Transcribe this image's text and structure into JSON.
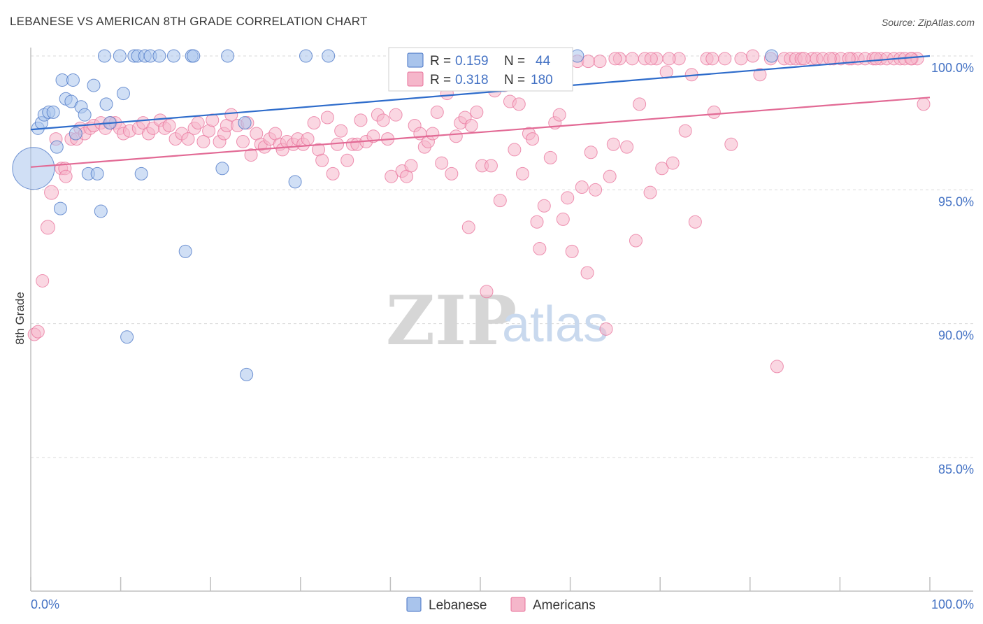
{
  "header": {
    "title": "LEBANESE VS AMERICAN 8TH GRADE CORRELATION CHART",
    "source": "Source: ZipAtlas.com"
  },
  "watermark": {
    "zip": "ZIP",
    "atlas": "atlas"
  },
  "colors": {
    "blue": "#4472c4",
    "blue_fill": "#a9c4ec",
    "blue_line": "#2e6ccb",
    "pink": "#e8709a",
    "pink_fill": "#f5b6ca",
    "pink_line": "#e26a95",
    "grid": "#d9d9d9",
    "axis": "#c0c0c0"
  },
  "legend": {
    "r_label": "R =",
    "n_label": "N =",
    "rows": [
      {
        "series": "Lebanese",
        "r": "0.159",
        "n": "44"
      },
      {
        "series": "Americans",
        "r": "0.318",
        "n": "180"
      }
    ]
  },
  "chart_data": {
    "type": "scatter",
    "title": "LEBANESE VS AMERICAN 8TH GRADE CORRELATION CHART",
    "xlabel": "",
    "ylabel": "8th Grade",
    "xlim": [
      0,
      100
    ],
    "ylim": [
      80.5,
      100.7
    ],
    "x_tick_labels": [
      "0.0%",
      "100.0%"
    ],
    "y_ticks": [
      85,
      90,
      95,
      100
    ],
    "y_tick_labels": [
      "85.0%",
      "90.0%",
      "95.0%",
      "100.0%"
    ],
    "grid": "horizontal dashed",
    "legend_placement": "top-center",
    "series": [
      {
        "name": "Lebanese",
        "color": "#4472c4",
        "trend": {
          "x0": 0,
          "y0": 97.25,
          "x1": 100,
          "y1": 100.0
        },
        "points": [
          [
            0.3,
            95.8
          ],
          [
            0.8,
            97.3
          ],
          [
            1.2,
            97.5
          ],
          [
            1.5,
            97.8
          ],
          [
            2.0,
            97.9
          ],
          [
            2.5,
            97.9
          ],
          [
            2.9,
            96.6
          ],
          [
            3.3,
            94.3
          ],
          [
            3.5,
            99.1
          ],
          [
            3.9,
            98.4
          ],
          [
            4.5,
            98.3
          ],
          [
            4.7,
            99.1
          ],
          [
            5.0,
            97.1
          ],
          [
            5.6,
            98.1
          ],
          [
            6.0,
            97.8
          ],
          [
            6.4,
            95.6
          ],
          [
            7.0,
            98.9
          ],
          [
            7.4,
            95.6
          ],
          [
            7.8,
            94.2
          ],
          [
            8.2,
            100.0
          ],
          [
            8.4,
            98.2
          ],
          [
            8.8,
            97.5
          ],
          [
            9.9,
            100.0
          ],
          [
            10.3,
            98.6
          ],
          [
            10.7,
            89.5
          ],
          [
            11.5,
            100.0
          ],
          [
            11.9,
            100.0
          ],
          [
            12.3,
            95.6
          ],
          [
            12.7,
            100.0
          ],
          [
            13.3,
            100.0
          ],
          [
            14.3,
            100.0
          ],
          [
            15.9,
            100.0
          ],
          [
            17.2,
            92.7
          ],
          [
            17.9,
            100.0
          ],
          [
            18.1,
            100.0
          ],
          [
            21.3,
            95.8
          ],
          [
            21.9,
            100.0
          ],
          [
            23.8,
            97.5
          ],
          [
            24.0,
            88.1
          ],
          [
            29.4,
            95.3
          ],
          [
            30.6,
            100.0
          ],
          [
            33.1,
            100.0
          ],
          [
            60.8,
            100.0
          ],
          [
            82.4,
            100.0
          ]
        ],
        "sizes": [
          30,
          9,
          9,
          9,
          9,
          9,
          9,
          9,
          9,
          9,
          9,
          9,
          9,
          9,
          9,
          9,
          9,
          9,
          9,
          9,
          9,
          9,
          9,
          9,
          9,
          9,
          9,
          9,
          9,
          9,
          9,
          9,
          9,
          9,
          9,
          9,
          9,
          9,
          9,
          9,
          9,
          9,
          9,
          9
        ]
      },
      {
        "name": "Americans",
        "color": "#e8709a",
        "trend": {
          "x0": 0,
          "y0": 95.85,
          "x1": 100,
          "y1": 98.45
        },
        "points": [
          [
            0.4,
            89.6
          ],
          [
            0.8,
            89.7
          ],
          [
            1.3,
            91.6
          ],
          [
            1.9,
            93.6
          ],
          [
            2.3,
            94.9
          ],
          [
            2.8,
            96.9
          ],
          [
            3.4,
            95.8
          ],
          [
            3.8,
            95.8
          ],
          [
            3.9,
            95.5
          ],
          [
            4.5,
            96.9
          ],
          [
            5.1,
            96.9
          ],
          [
            5.5,
            97.3
          ],
          [
            6.0,
            97.1
          ],
          [
            6.6,
            97.3
          ],
          [
            7.0,
            97.4
          ],
          [
            7.8,
            97.5
          ],
          [
            8.3,
            97.3
          ],
          [
            8.9,
            97.5
          ],
          [
            9.4,
            97.5
          ],
          [
            9.9,
            97.3
          ],
          [
            10.3,
            97.1
          ],
          [
            11.0,
            97.2
          ],
          [
            12.0,
            97.3
          ],
          [
            12.5,
            97.5
          ],
          [
            13.1,
            97.1
          ],
          [
            13.6,
            97.3
          ],
          [
            14.4,
            97.6
          ],
          [
            14.9,
            97.3
          ],
          [
            15.4,
            97.4
          ],
          [
            16.1,
            96.9
          ],
          [
            16.8,
            97.1
          ],
          [
            17.5,
            96.9
          ],
          [
            18.2,
            97.3
          ],
          [
            18.6,
            97.5
          ],
          [
            19.2,
            96.8
          ],
          [
            19.8,
            97.2
          ],
          [
            20.2,
            97.6
          ],
          [
            21.0,
            96.8
          ],
          [
            21.5,
            97.1
          ],
          [
            21.8,
            97.4
          ],
          [
            22.3,
            97.8
          ],
          [
            23.0,
            97.4
          ],
          [
            23.6,
            96.8
          ],
          [
            24.1,
            97.5
          ],
          [
            24.5,
            96.3
          ],
          [
            25.1,
            97.1
          ],
          [
            25.6,
            96.7
          ],
          [
            26.0,
            96.6
          ],
          [
            26.6,
            96.9
          ],
          [
            27.2,
            97.1
          ],
          [
            27.7,
            96.7
          ],
          [
            28.0,
            96.5
          ],
          [
            28.5,
            96.8
          ],
          [
            29.2,
            96.7
          ],
          [
            29.7,
            96.9
          ],
          [
            30.3,
            96.7
          ],
          [
            30.8,
            96.9
          ],
          [
            31.5,
            97.5
          ],
          [
            32.0,
            96.5
          ],
          [
            32.4,
            96.1
          ],
          [
            33.0,
            97.7
          ],
          [
            33.6,
            95.6
          ],
          [
            34.1,
            96.7
          ],
          [
            34.5,
            97.2
          ],
          [
            35.2,
            96.1
          ],
          [
            35.8,
            96.7
          ],
          [
            36.3,
            96.7
          ],
          [
            36.7,
            97.6
          ],
          [
            37.3,
            96.8
          ],
          [
            38.1,
            97.0
          ],
          [
            38.6,
            97.8
          ],
          [
            39.2,
            97.6
          ],
          [
            39.7,
            96.9
          ],
          [
            40.1,
            95.5
          ],
          [
            40.6,
            97.8
          ],
          [
            41.3,
            95.7
          ],
          [
            41.8,
            95.5
          ],
          [
            42.3,
            95.9
          ],
          [
            42.7,
            97.4
          ],
          [
            43.3,
            97.1
          ],
          [
            43.8,
            96.6
          ],
          [
            44.2,
            96.8
          ],
          [
            44.7,
            97.1
          ],
          [
            45.2,
            97.9
          ],
          [
            45.7,
            96.0
          ],
          [
            46.3,
            98.6
          ],
          [
            46.8,
            95.6
          ],
          [
            47.3,
            97.0
          ],
          [
            47.8,
            97.5
          ],
          [
            48.3,
            97.7
          ],
          [
            48.7,
            93.6
          ],
          [
            49.0,
            97.4
          ],
          [
            49.6,
            97.9
          ],
          [
            50.2,
            95.9
          ],
          [
            50.7,
            91.2
          ],
          [
            51.2,
            95.9
          ],
          [
            51.6,
            98.7
          ],
          [
            52.2,
            94.6
          ],
          [
            52.7,
            98.9
          ],
          [
            53.3,
            98.3
          ],
          [
            53.8,
            96.5
          ],
          [
            54.3,
            98.2
          ],
          [
            54.7,
            95.6
          ],
          [
            55.4,
            97.1
          ],
          [
            55.8,
            96.9
          ],
          [
            56.3,
            93.8
          ],
          [
            56.6,
            92.8
          ],
          [
            57.1,
            94.4
          ],
          [
            57.8,
            96.2
          ],
          [
            58.3,
            97.5
          ],
          [
            58.8,
            97.8
          ],
          [
            59.2,
            93.9
          ],
          [
            59.7,
            94.7
          ],
          [
            60.2,
            92.7
          ],
          [
            60.8,
            99.8
          ],
          [
            61.3,
            95.1
          ],
          [
            61.9,
            91.9
          ],
          [
            62.3,
            96.4
          ],
          [
            62.8,
            95.0
          ],
          [
            63.3,
            99.8
          ],
          [
            64.0,
            89.8
          ],
          [
            64.4,
            95.5
          ],
          [
            64.8,
            96.7
          ],
          [
            65.5,
            99.9
          ],
          [
            66.3,
            96.6
          ],
          [
            67.3,
            93.1
          ],
          [
            67.7,
            98.2
          ],
          [
            68.3,
            99.9
          ],
          [
            68.9,
            94.9
          ],
          [
            69.6,
            99.9
          ],
          [
            70.2,
            95.8
          ],
          [
            70.7,
            99.4
          ],
          [
            71.4,
            96.0
          ],
          [
            72.1,
            99.9
          ],
          [
            72.8,
            97.2
          ],
          [
            73.5,
            99.3
          ],
          [
            73.9,
            93.8
          ],
          [
            75.2,
            99.9
          ],
          [
            76.0,
            97.9
          ],
          [
            77.2,
            99.9
          ],
          [
            77.9,
            96.7
          ],
          [
            79.0,
            99.9
          ],
          [
            80.3,
            100.0
          ],
          [
            81.1,
            99.3
          ],
          [
            82.3,
            99.9
          ],
          [
            83.0,
            88.4
          ],
          [
            83.8,
            99.9
          ],
          [
            84.5,
            99.9
          ],
          [
            85.1,
            99.9
          ],
          [
            85.7,
            99.9
          ],
          [
            86.9,
            99.9
          ],
          [
            87.4,
            99.9
          ],
          [
            88.1,
            99.9
          ],
          [
            89.3,
            99.9
          ],
          [
            90.1,
            99.9
          ],
          [
            91.3,
            99.9
          ],
          [
            92.0,
            99.9
          ],
          [
            92.8,
            99.9
          ],
          [
            93.7,
            99.9
          ],
          [
            94.5,
            99.9
          ],
          [
            95.2,
            99.9
          ],
          [
            96.0,
            99.9
          ],
          [
            96.7,
            99.9
          ],
          [
            97.2,
            99.9
          ],
          [
            98.0,
            99.9
          ],
          [
            98.6,
            99.9
          ],
          [
            99.3,
            98.2
          ],
          [
            66.9,
            99.9
          ],
          [
            69.0,
            99.9
          ],
          [
            75.8,
            99.9
          ],
          [
            86.0,
            99.9
          ],
          [
            88.9,
            99.9
          ],
          [
            91.0,
            99.9
          ],
          [
            94.0,
            99.9
          ],
          [
            97.9,
            99.9
          ],
          [
            71.0,
            99.9
          ],
          [
            65.0,
            99.9
          ],
          [
            62.0,
            99.8
          ],
          [
            59.0,
            99.9
          ],
          [
            57.0,
            99.9
          ]
        ],
        "sizes": [
          9,
          9,
          9,
          10,
          10,
          9,
          9,
          9,
          9,
          9,
          9,
          9,
          9,
          9,
          9,
          9,
          9,
          9,
          9,
          9,
          9,
          9,
          9,
          9,
          9,
          9,
          9,
          9,
          9,
          9,
          9,
          9,
          9,
          9,
          9,
          9,
          9,
          9,
          9,
          9,
          9,
          9,
          9,
          9,
          9,
          9,
          9,
          9,
          9,
          9,
          9,
          9,
          9,
          9,
          9,
          9,
          9,
          9,
          9,
          9,
          9,
          9,
          9,
          9,
          9,
          9,
          9,
          9,
          9,
          9,
          9,
          9,
          9,
          9,
          9,
          9,
          9,
          9,
          9,
          9,
          9,
          9,
          9,
          9,
          9,
          9,
          9,
          9,
          9,
          9,
          9,
          9,
          9,
          9,
          9,
          9,
          9,
          9,
          9,
          9,
          9,
          9,
          9,
          9,
          9,
          9,
          9,
          9,
          9,
          9,
          9,
          9,
          9,
          9,
          9,
          9,
          9,
          9,
          9,
          9,
          9,
          9,
          9,
          9,
          9,
          9,
          9,
          9,
          9,
          9,
          9,
          9,
          9,
          9,
          9,
          9,
          9,
          9,
          9,
          9,
          9,
          9,
          9,
          9,
          9,
          9,
          9,
          9,
          9,
          9,
          9,
          9,
          9,
          9,
          9,
          9,
          9,
          9,
          9,
          9,
          9,
          9,
          9,
          9,
          9,
          9,
          9,
          9,
          9,
          9,
          9,
          9,
          9,
          9,
          9,
          9,
          9,
          9,
          9,
          9
        ]
      }
    ]
  }
}
